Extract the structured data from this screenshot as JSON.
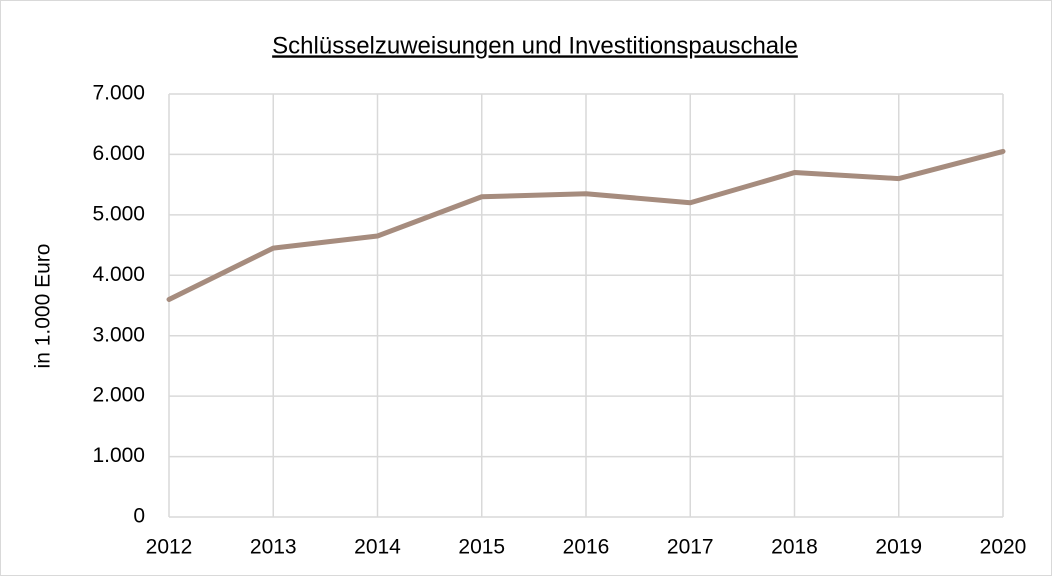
{
  "chart_data": {
    "type": "line",
    "title": "Schlüsselzuweisungen und Investitionspauschale",
    "y_label": "in 1.000 Euro",
    "categories": [
      "2012",
      "2013",
      "2014",
      "2015",
      "2016",
      "2017",
      "2018",
      "2019",
      "2020"
    ],
    "values": [
      3600,
      4450,
      4650,
      5300,
      5350,
      5200,
      5700,
      5600,
      6050
    ],
    "color": "#a68c7e",
    "ylim": [
      0,
      7000
    ],
    "yticks": [
      0,
      {
        "value": 1000,
        "label": "1.000"
      },
      {
        "value": 2000,
        "label": "2.000"
      },
      {
        "value": 3000,
        "label": "3.000"
      },
      {
        "value": 4000,
        "label": "4.000"
      },
      {
        "value": 5000,
        "label": "5.000"
      },
      {
        "value": 6000,
        "label": "6.000"
      },
      {
        "value": 7000,
        "label": "7.000"
      }
    ],
    "grid": true
  }
}
